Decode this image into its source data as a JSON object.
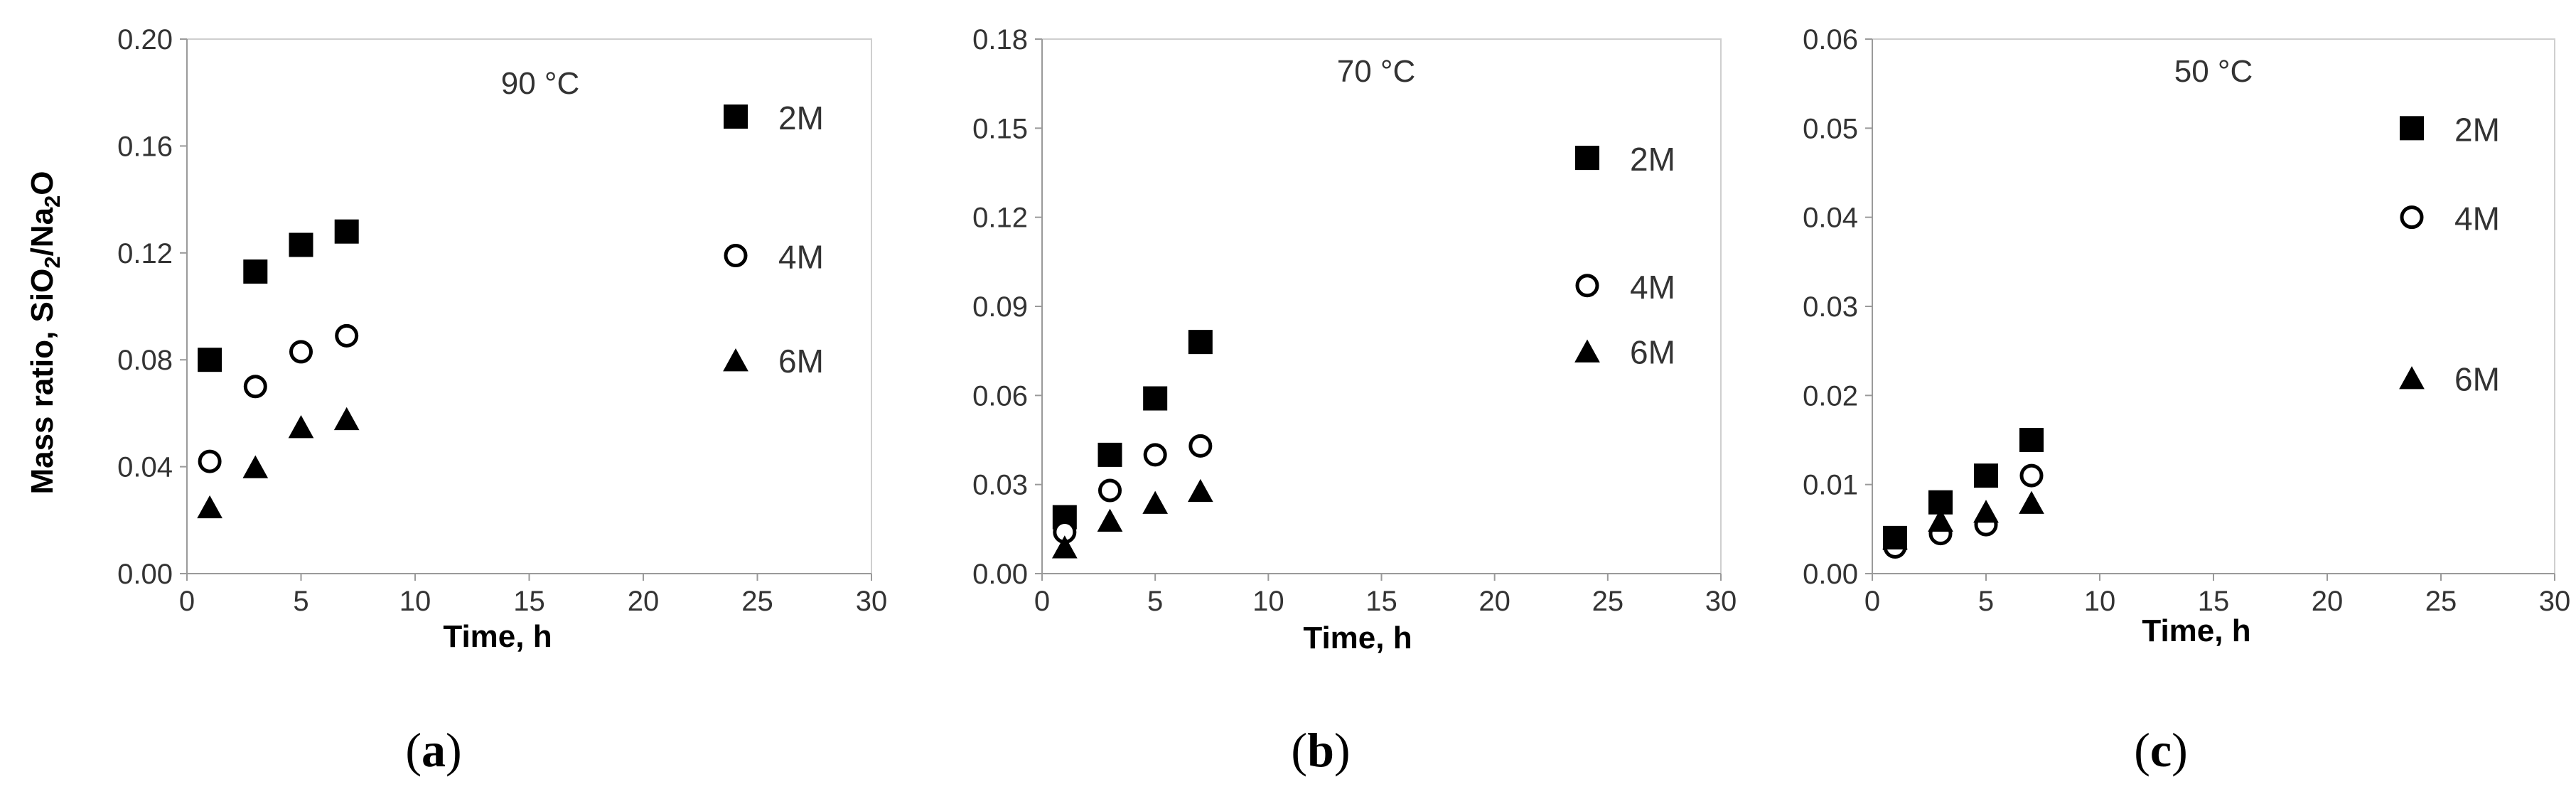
{
  "chart_data": [
    {
      "type": "scatter",
      "panel_label": "a",
      "title": "90 °C",
      "xlabel": "Time, h",
      "ylabel": {
        "text": "Mass ratio, SiO",
        "sub1": "2",
        "mid": "/Na",
        "sub2": "2",
        "end": "O"
      },
      "xlim": [
        0,
        30
      ],
      "ylim": [
        0,
        0.2
      ],
      "xticks": [
        0,
        5,
        10,
        15,
        20,
        25,
        30
      ],
      "yticks": [
        "0.00",
        "0.04",
        "0.08",
        "0.12",
        "0.16",
        "0.20"
      ],
      "legend_position": "right",
      "series": [
        {
          "name": "2M",
          "marker": "square",
          "x": [
            1,
            3,
            5,
            7
          ],
          "y": [
            0.08,
            0.113,
            0.123,
            0.128
          ],
          "legend_y": 0.171
        },
        {
          "name": "4M",
          "marker": "circle",
          "x": [
            1,
            3,
            5,
            7
          ],
          "y": [
            0.042,
            0.07,
            0.083,
            0.089
          ],
          "legend_y": 0.119
        },
        {
          "name": "6M",
          "marker": "triangle",
          "x": [
            1,
            3,
            5,
            7
          ],
          "y": [
            0.025,
            0.04,
            0.055,
            0.058
          ],
          "legend_y": 0.08
        }
      ]
    },
    {
      "type": "scatter",
      "panel_label": "b",
      "title": "70 °C",
      "xlabel": "Time, h",
      "xlim": [
        0,
        30
      ],
      "ylim": [
        0,
        0.18
      ],
      "xticks": [
        0,
        5,
        10,
        15,
        20,
        25,
        30
      ],
      "yticks": [
        "0.00",
        "0.03",
        "0.06",
        "0.09",
        "0.12",
        "0.15",
        "0.18"
      ],
      "legend_position": "right",
      "series": [
        {
          "name": "2M",
          "marker": "square",
          "x": [
            1,
            3,
            5,
            7
          ],
          "y": [
            0.019,
            0.04,
            0.059,
            0.078
          ],
          "legend_y": 0.14
        },
        {
          "name": "4M",
          "marker": "circle",
          "x": [
            1,
            3,
            5,
            7
          ],
          "y": [
            0.014,
            0.028,
            0.04,
            0.043
          ],
          "legend_y": 0.097
        },
        {
          "name": "6M",
          "marker": "triangle",
          "x": [
            1,
            3,
            5,
            7
          ],
          "y": [
            0.009,
            0.018,
            0.024,
            0.028
          ],
          "legend_y": 0.075
        }
      ]
    },
    {
      "type": "scatter",
      "panel_label": "c",
      "title": "50 °C",
      "xlabel": "Time, h",
      "xlim": [
        0,
        30
      ],
      "ylim": [
        0,
        0.06
      ],
      "xticks": [
        0,
        5,
        10,
        15,
        20,
        25,
        30
      ],
      "yticks": [
        "0.00",
        "0.01",
        "0.02",
        "0.03",
        "0.04",
        "0.05",
        "0.06"
      ],
      "legend_position": "right",
      "series": [
        {
          "name": "2M",
          "marker": "square",
          "x": [
            1,
            3,
            5,
            7
          ],
          "y": [
            0.004,
            0.008,
            0.011,
            0.015
          ],
          "legend_y": 0.05
        },
        {
          "name": "4M",
          "marker": "circle",
          "x": [
            1,
            3,
            5,
            7
          ],
          "y": [
            0.003,
            0.0045,
            0.0055,
            0.011
          ],
          "legend_y": 0.04
        },
        {
          "name": "6M",
          "marker": "triangle",
          "x": [
            1,
            3,
            5,
            7
          ],
          "y": [
            0.004,
            0.006,
            0.007,
            0.008
          ],
          "legend_y": 0.022
        }
      ]
    }
  ]
}
